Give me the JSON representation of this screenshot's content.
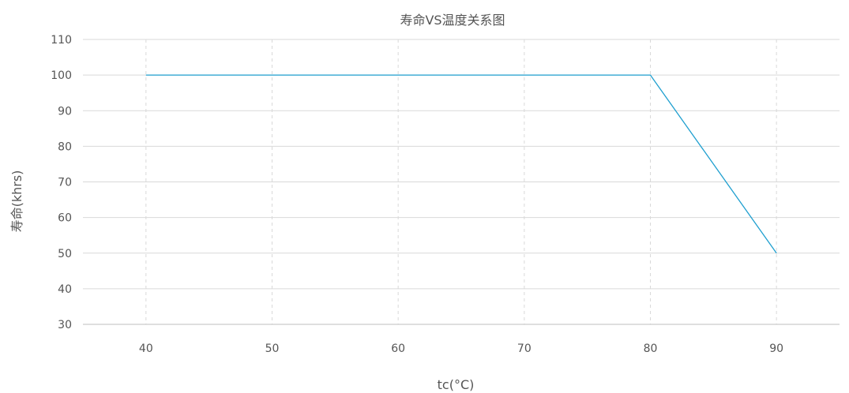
{
  "chart_data": {
    "type": "line",
    "title": "寿命VS温度关系图",
    "xlabel": "tc(°C)",
    "ylabel": "寿命(khrs)",
    "x": [
      40,
      80,
      90
    ],
    "series": [
      {
        "values": [
          100,
          100,
          50
        ]
      }
    ],
    "xlim": [
      35,
      95
    ],
    "ylim": [
      30,
      110
    ],
    "xticks": [
      40,
      50,
      60,
      70,
      80,
      90
    ],
    "yticks": [
      30,
      40,
      50,
      60,
      70,
      80,
      90,
      100,
      110
    ],
    "x_gridlines": "dashed",
    "y_gridlines": "solid",
    "line_color": "#1f9fcf",
    "grid_color": "#d9d9d9",
    "axis_color": "#bfbfbf",
    "text_color": "#555555"
  }
}
